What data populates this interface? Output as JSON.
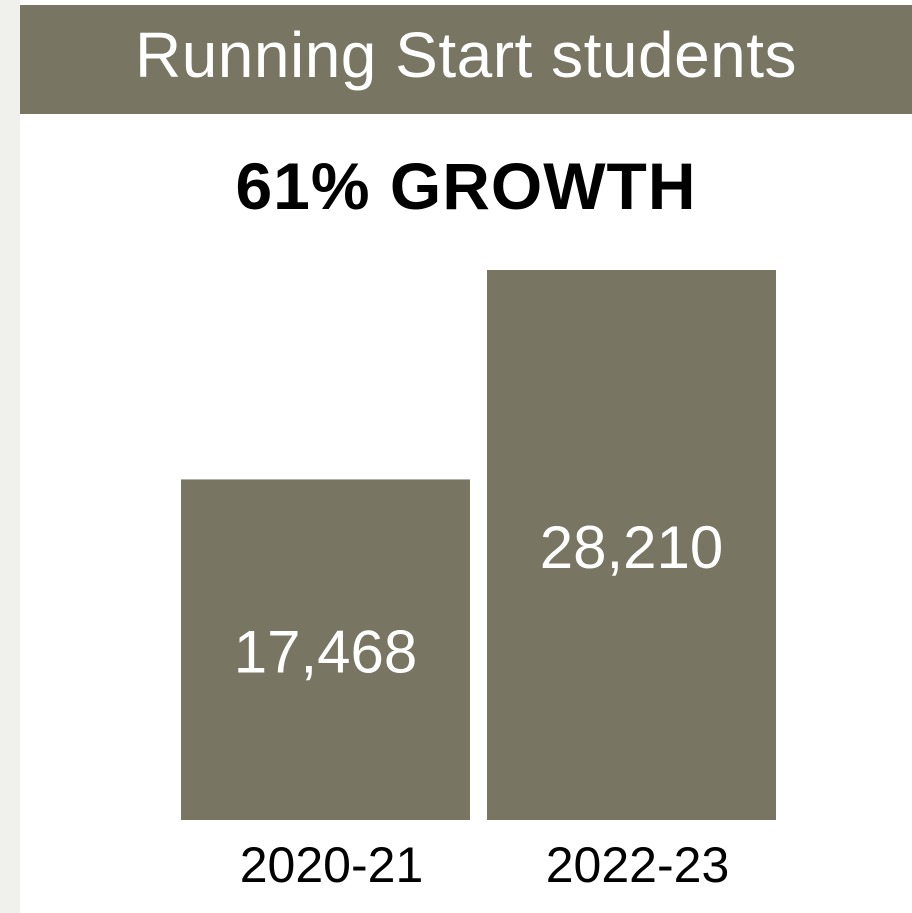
{
  "header": {
    "title": "Running Start students"
  },
  "chart_data": {
    "type": "bar",
    "title": "Running Start students",
    "subtitle": "61% GROWTH",
    "categories": [
      "2020-21",
      "2022-23"
    ],
    "values": [
      17468,
      28210
    ],
    "value_labels": [
      "17,468",
      "28,210"
    ],
    "ylim": [
      0,
      28210
    ],
    "grid": false,
    "xlabel": "",
    "ylabel": "",
    "bar_color": "#787562"
  }
}
